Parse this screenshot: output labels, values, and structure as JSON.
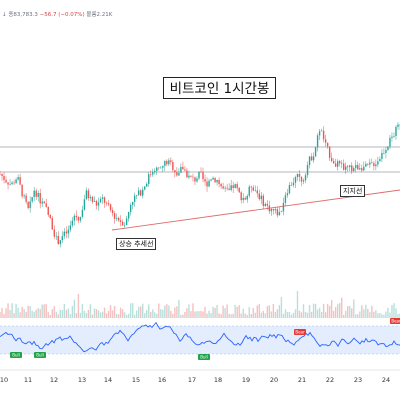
{
  "header": {
    "ohlc_text_prefix": "↓",
    "ohlc_close": "종83,783.3",
    "ohlc_change": "−56.7 (−0.07%)",
    "ohlc_volume": "볼륨2.21K"
  },
  "title": "비트코인 1시간봉",
  "annotations": {
    "uptrend_label": "상승 추세선",
    "support_label": "지지선"
  },
  "x_axis": {
    "labels": [
      "10",
      "11",
      "12",
      "13",
      "14",
      "15",
      "16",
      "17",
      "18",
      "19",
      "20",
      "21",
      "22",
      "23",
      "24"
    ]
  },
  "rsi_signals": [
    {
      "label": "Bull"
    },
    {
      "label": "Bull"
    },
    {
      "label": "Bull"
    },
    {
      "label": "Bear"
    },
    {
      "label": "Bear"
    }
  ],
  "colors": {
    "up": "#26a69a",
    "down": "#ef5350",
    "rsi_line": "#2962ff",
    "rsi_band": "#e3edfd",
    "trendline": "#e06b6b",
    "hline": "#9aa0a6",
    "bull_badge": "#22a34a",
    "bear_badge": "#e53935"
  },
  "chart_data": {
    "type": "candlestick",
    "title": "비트코인 1시간봉",
    "x": [
      "10",
      "11",
      "12",
      "13",
      "14",
      "15",
      "16",
      "17",
      "18",
      "19",
      "20",
      "21",
      "22",
      "23",
      "24"
    ],
    "close_path": [
      0.62,
      0.58,
      0.55,
      0.6,
      0.48,
      0.38,
      0.52,
      0.45,
      0.4,
      0.3,
      0.18,
      0.22,
      0.25,
      0.35,
      0.33,
      0.5,
      0.45,
      0.42,
      0.46,
      0.4,
      0.35,
      0.32,
      0.3,
      0.45,
      0.48,
      0.52,
      0.6,
      0.66,
      0.64,
      0.7,
      0.68,
      0.62,
      0.66,
      0.6,
      0.58,
      0.62,
      0.55,
      0.6,
      0.58,
      0.52,
      0.5,
      0.55,
      0.48,
      0.46,
      0.55,
      0.5,
      0.44,
      0.4,
      0.38,
      0.36,
      0.5,
      0.56,
      0.6,
      0.58,
      0.7,
      0.76,
      0.92,
      0.8,
      0.72,
      0.68,
      0.66,
      0.65,
      0.66,
      0.67,
      0.66,
      0.68,
      0.7,
      0.76,
      0.82,
      0.88,
      0.95
    ]
  }
}
